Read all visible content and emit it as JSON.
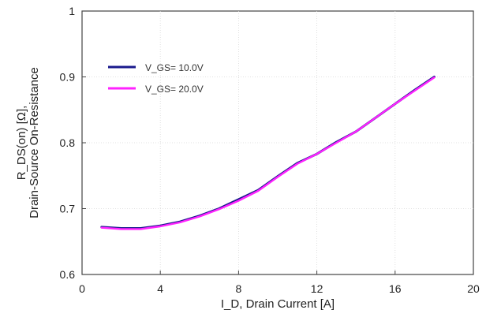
{
  "chart_data": {
    "type": "line",
    "title": "",
    "xlabel": "I_D, Drain Current [A]",
    "ylabel_line1": "R_DS(on) [Ω],",
    "ylabel_line2": "Drain-Source On-Resistance",
    "xlim": [
      0,
      20
    ],
    "ylim": [
      0.6,
      1.0
    ],
    "x_ticks": [
      0,
      4,
      8,
      12,
      16,
      20
    ],
    "y_ticks": [
      0.6,
      0.7,
      0.8,
      0.9,
      1.0
    ],
    "x_tick_labels": [
      "0",
      "4",
      "8",
      "12",
      "16",
      "20"
    ],
    "y_tick_labels": [
      "0.6",
      "0.7",
      "0.8",
      "0.9",
      "1"
    ],
    "grid": true,
    "legend_position": "top-left",
    "series": [
      {
        "name": "V_GS= 10.0V",
        "color": "#1a1a8c",
        "x": [
          1,
          2,
          3,
          4,
          5,
          6,
          7,
          8,
          9,
          10,
          11,
          12,
          13,
          14,
          15,
          16,
          17,
          18
        ],
        "y": [
          0.672,
          0.67,
          0.67,
          0.674,
          0.68,
          0.689,
          0.7,
          0.714,
          0.728,
          0.749,
          0.769,
          0.783,
          0.801,
          0.817,
          0.838,
          0.859,
          0.88,
          0.9
        ]
      },
      {
        "name": "V_GS= 20.0V",
        "color": "#ff22ff",
        "x": [
          1,
          2,
          3,
          4,
          5,
          6,
          7,
          8,
          9,
          10,
          11,
          12,
          13,
          14,
          15,
          16,
          17,
          18
        ],
        "y": [
          0.671,
          0.669,
          0.669,
          0.673,
          0.679,
          0.688,
          0.699,
          0.712,
          0.727,
          0.748,
          0.768,
          0.783,
          0.8,
          0.817,
          0.838,
          0.859,
          0.879,
          0.899
        ]
      }
    ]
  }
}
